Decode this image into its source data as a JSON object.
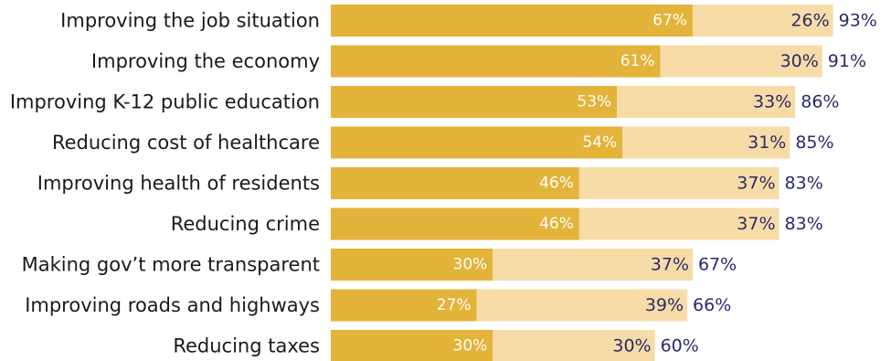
{
  "chart_data": {
    "type": "bar",
    "orientation": "horizontal",
    "stacked": true,
    "categories": [
      "Improving the job situation",
      "Improving the economy",
      "Improving K-12 public education",
      "Reducing cost of healthcare",
      "Improving health of residents",
      "Reducing crime",
      "Making gov’t more transparent",
      "Improving roads and highways",
      "Reducing taxes"
    ],
    "series": [
      {
        "values": [
          67,
          61,
          53,
          54,
          46,
          46,
          30,
          27,
          30
        ],
        "color": "#e3b33a"
      },
      {
        "values": [
          26,
          30,
          33,
          31,
          37,
          37,
          37,
          39,
          30
        ],
        "color": "#f7dca8"
      }
    ],
    "totals": [
      93,
      91,
      86,
      85,
      83,
      83,
      67,
      66,
      60
    ],
    "unit": "%",
    "xlim": [
      0,
      100
    ],
    "grid": false,
    "legend": "none"
  }
}
